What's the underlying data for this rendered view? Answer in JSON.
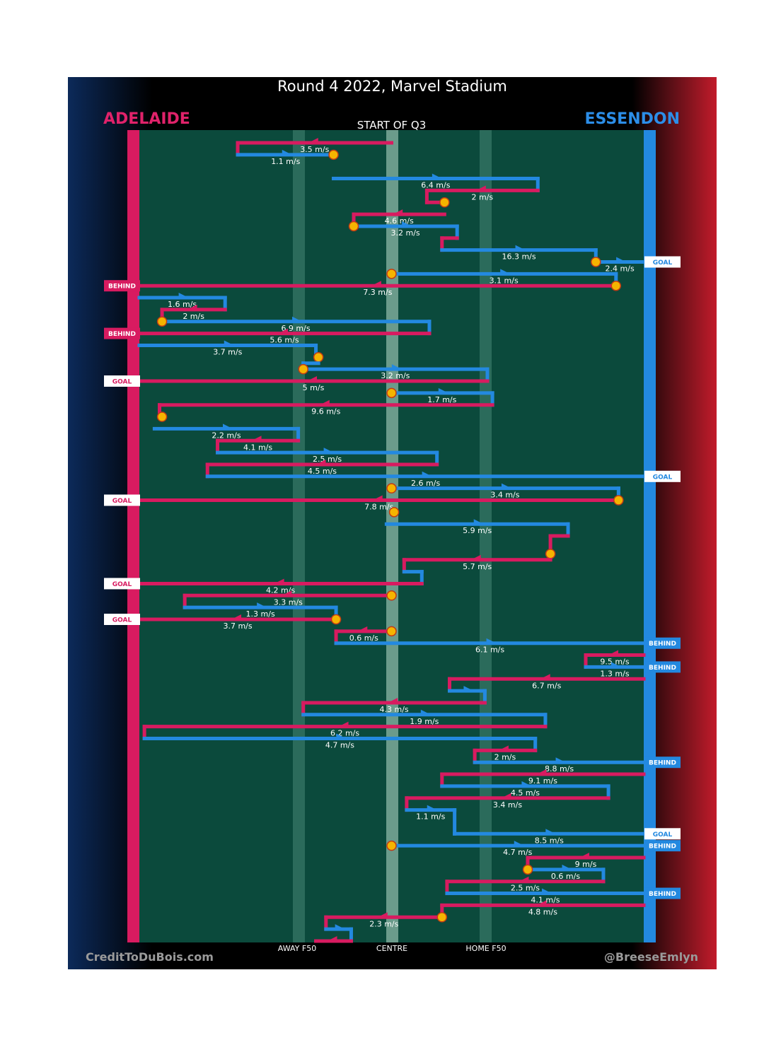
{
  "title": "Round 4 2022, Marvel Stadium",
  "teams": {
    "left": "ADELAIDE",
    "right": "ESSENDON",
    "left_color": "#d81b60",
    "right_color": "#2389e0"
  },
  "start_label": "START OF Q3",
  "axis_labels": {
    "away": "AWAY F50",
    "centre": "CENTRE",
    "home": "HOME F50"
  },
  "footer": {
    "credit": "CreditToDuBois.com",
    "handle": "@BreeseEmlyn"
  },
  "colors": {
    "field": "#0b4a3c",
    "stripe": "#2b6b5b",
    "centre_stripe": "#6b9b8b",
    "marker": "#f5b400",
    "marker_ring": "#c23b14"
  },
  "chart_data": {
    "type": "line",
    "description_units": "x = field position from Adelaide end (0) to Essendon end (100); y = event order",
    "x_axis": {
      "range": [
        0,
        100
      ],
      "ticks": [
        {
          "value": 31,
          "label": "AWAY F50"
        },
        {
          "value": 50,
          "label": "CENTRE"
        },
        {
          "value": 69,
          "label": "HOME F50"
        }
      ]
    },
    "series": [
      {
        "team": "ADE",
        "x1": 50,
        "x2": 19.5,
        "y": 1,
        "speed": "3.5 m/s",
        "conn_to": 2
      },
      {
        "team": "ESS",
        "x1": 19.5,
        "x2": 38.5,
        "y": 2,
        "speed": "1.1 m/s",
        "start_marker": false,
        "end_marker": true
      },
      {
        "team": "ESS",
        "x1": 38.5,
        "x2": 79,
        "y": 4,
        "speed": "6.4 m/s",
        "conn_to": 5
      },
      {
        "team": "ADE",
        "x1": 79,
        "x2": 57,
        "y": 5,
        "speed": "2 m/s",
        "conn_to": 6
      },
      {
        "team": "ADE",
        "x1": 57,
        "x2": 60.5,
        "y": 6,
        "speed": "",
        "end_marker": true
      },
      {
        "team": "ADE",
        "x1": 60.5,
        "x2": 42.5,
        "y": 7,
        "speed": "4.6 m/s",
        "conn_to": 8
      },
      {
        "team": "ESS",
        "x1": 42.5,
        "x2": 63,
        "y": 8,
        "speed": "3.2 m/s",
        "start_marker": true,
        "conn_to": 9
      },
      {
        "team": "ADE",
        "x1": 63,
        "x2": 60,
        "y": 9,
        "speed": "",
        "conn_to": 10
      },
      {
        "team": "ESS",
        "x1": 60,
        "x2": 90.5,
        "y": 10,
        "speed": "16.3 m/s",
        "conn_to": 11
      },
      {
        "team": "ESS",
        "x1": 90.5,
        "x2": 100,
        "y": 11,
        "speed": "2.4 m/s",
        "start_marker": true,
        "tag": "GOAL"
      },
      {
        "team": "ESS",
        "x1": 50,
        "x2": 94.5,
        "y": 12,
        "speed": "3.1 m/s",
        "start_marker": true,
        "conn_to": 13
      },
      {
        "team": "ADE",
        "x1": 94.5,
        "x2": 0,
        "y": 13,
        "speed": "7.3 m/s",
        "start_marker": true,
        "tag": "BEHIND"
      },
      {
        "team": "ESS",
        "x1": 0,
        "x2": 17,
        "y": 14,
        "speed": "1.6 m/s",
        "conn_to": 15
      },
      {
        "team": "ADE",
        "x1": 17,
        "x2": 4.5,
        "y": 15,
        "speed": "2 m/s",
        "conn_to": 16
      },
      {
        "team": "ESS",
        "x1": 4.5,
        "x2": 57.5,
        "y": 16,
        "speed": "6.9 m/s",
        "start_marker": true,
        "conn_to": 17
      },
      {
        "team": "ADE",
        "x1": 57.5,
        "x2": 0,
        "y": 17,
        "speed": "5.6 m/s",
        "tag": "BEHIND"
      },
      {
        "team": "ESS",
        "x1": 0,
        "x2": 35,
        "y": 18,
        "speed": "3.7 m/s",
        "conn_to": 19
      },
      {
        "team": "ADE",
        "x1": 35,
        "x2": 35.5,
        "y": 19,
        "speed": "",
        "end_marker": true
      },
      {
        "team": "ESS",
        "x1": 35.5,
        "x2": 32.5,
        "y": 19.5,
        "speed": "",
        "conn_to": 20
      },
      {
        "team": "ESS",
        "x1": 32.5,
        "x2": 69,
        "y": 20,
        "speed": "3.2 m/s",
        "start_marker": true,
        "conn_to": 21
      },
      {
        "team": "ADE",
        "x1": 69,
        "x2": 0,
        "y": 21,
        "speed": "5 m/s",
        "tag": "GOAL"
      },
      {
        "team": "ESS",
        "x1": 50,
        "x2": 70,
        "y": 22,
        "speed": "1.7 m/s",
        "start_marker": true,
        "conn_to": 23
      },
      {
        "team": "ADE",
        "x1": 70,
        "x2": 4,
        "y": 23,
        "speed": "9.6 m/s",
        "conn_to": 24
      },
      {
        "team": "ADE",
        "x1": 4,
        "x2": 4.5,
        "y": 24,
        "speed": "",
        "end_marker": true
      },
      {
        "team": "ESS",
        "x1": 3,
        "x2": 31.5,
        "y": 25,
        "speed": "2.2 m/s",
        "conn_to": 26
      },
      {
        "team": "ADE",
        "x1": 31.5,
        "x2": 15.5,
        "y": 26,
        "speed": "4.1 m/s",
        "conn_to": 27
      },
      {
        "team": "ESS",
        "x1": 15.5,
        "x2": 59,
        "y": 27,
        "speed": "2.5 m/s",
        "conn_to": 28
      },
      {
        "team": "ADE",
        "x1": 59,
        "x2": 13.5,
        "y": 28,
        "speed": "4.5 m/s",
        "conn_to": 29
      },
      {
        "team": "ESS",
        "x1": 13.5,
        "x2": 100,
        "y": 29,
        "speed": "2.6 m/s",
        "tag": "GOAL"
      },
      {
        "team": "ESS",
        "x1": 50,
        "x2": 95,
        "y": 30,
        "speed": "3.4 m/s",
        "start_marker": true,
        "conn_to": 31
      },
      {
        "team": "ADE",
        "x1": 95,
        "x2": 0,
        "y": 31,
        "speed": "7.8 m/s",
        "start_marker": true,
        "tag": "GOAL"
      },
      {
        "team": "ADE",
        "x1": 50,
        "x2": 50.5,
        "y": 32,
        "speed": "",
        "end_marker": true
      },
      {
        "team": "ESS",
        "x1": 49,
        "x2": 85,
        "y": 33,
        "speed": "5.9 m/s",
        "conn_to": 34
      },
      {
        "team": "ADE",
        "x1": 85,
        "x2": 81.5,
        "y": 34,
        "speed": "",
        "conn_to": 35
      },
      {
        "team": "ADE",
        "x1": 81.5,
        "x2": 81.5,
        "y": 35.5,
        "speed": "",
        "end_marker": true
      },
      {
        "team": "ADE",
        "x1": 81.5,
        "x2": 52.5,
        "y": 36,
        "speed": "5.7 m/s",
        "conn_to": 37
      },
      {
        "team": "ESS",
        "x1": 52.5,
        "x2": 56,
        "y": 37,
        "speed": "",
        "conn_to": 38
      },
      {
        "team": "ADE",
        "x1": 56,
        "x2": 0,
        "y": 38,
        "speed": "4.2 m/s",
        "tag": "GOAL"
      },
      {
        "team": "ADE",
        "x1": 50,
        "x2": 9,
        "y": 39,
        "speed": "3.3 m/s",
        "end_marker": false,
        "start_marker": true,
        "conn_to": 40
      },
      {
        "team": "ESS",
        "x1": 9,
        "x2": 39,
        "y": 40,
        "speed": "1.3 m/s",
        "conn_to": 41
      },
      {
        "team": "ADE",
        "x1": 39,
        "x2": 0,
        "y": 41,
        "speed": "3.7 m/s",
        "start_marker": true,
        "tag": "GOAL"
      },
      {
        "team": "ADE",
        "x1": 50,
        "x2": 39,
        "y": 42,
        "speed": "0.6 m/s",
        "start_marker": true,
        "conn_to": 43
      },
      {
        "team": "ESS",
        "x1": 39,
        "x2": 100,
        "y": 43,
        "speed": "6.1 m/s",
        "tag": "BEHIND"
      },
      {
        "team": "ADE",
        "x1": 100,
        "x2": 88.5,
        "y": 44,
        "speed": "9.5 m/s",
        "conn_to": 45
      },
      {
        "team": "ESS",
        "x1": 88.5,
        "x2": 100,
        "y": 45,
        "speed": "1.3 m/s",
        "tag": "BEHIND"
      },
      {
        "team": "ADE",
        "x1": 100,
        "x2": 61.5,
        "y": 46,
        "speed": "6.7 m/s",
        "conn_to": 47
      },
      {
        "team": "ESS",
        "x1": 61.5,
        "x2": 68.5,
        "y": 47,
        "speed": "",
        "conn_to": 48
      },
      {
        "team": "ADE",
        "x1": 68.5,
        "x2": 32.5,
        "y": 48,
        "speed": "4.3 m/s",
        "conn_to": 49
      },
      {
        "team": "ESS",
        "x1": 32.5,
        "x2": 80.5,
        "y": 49,
        "speed": "1.9 m/s",
        "conn_to": 50
      },
      {
        "team": "ADE",
        "x1": 80.5,
        "x2": 1,
        "y": 50,
        "speed": "6.2 m/s",
        "conn_to": 51
      },
      {
        "team": "ESS",
        "x1": 1,
        "x2": 78.5,
        "y": 51,
        "speed": "4.7 m/s",
        "conn_to": 52
      },
      {
        "team": "ADE",
        "x1": 78.5,
        "x2": 66.5,
        "y": 52,
        "speed": "2 m/s",
        "conn_to": 53
      },
      {
        "team": "ESS",
        "x1": 66.5,
        "x2": 100,
        "y": 53,
        "speed": "8.8 m/s",
        "tag": "BEHIND"
      },
      {
        "team": "ADE",
        "x1": 100,
        "x2": 60,
        "y": 54,
        "speed": "9.1 m/s",
        "conn_to": 55
      },
      {
        "team": "ESS",
        "x1": 60,
        "x2": 93,
        "y": 55,
        "speed": "4.5 m/s",
        "conn_to": 56
      },
      {
        "team": "ADE",
        "x1": 93,
        "x2": 53,
        "y": 56,
        "speed": "3.4 m/s",
        "conn_to": 57
      },
      {
        "team": "ESS",
        "x1": 53,
        "x2": 62.5,
        "y": 57,
        "speed": "1.1 m/s",
        "conn_to": 59
      },
      {
        "team": "ESS",
        "x1": 62.5,
        "x2": 100,
        "y": 59,
        "speed": "8.5 m/s",
        "tag": "GOAL"
      },
      {
        "team": "ESS",
        "x1": 50,
        "x2": 100,
        "y": 60,
        "speed": "4.7 m/s",
        "start_marker": true,
        "tag": "BEHIND"
      },
      {
        "team": "ADE",
        "x1": 100,
        "x2": 77,
        "y": 61,
        "speed": "9 m/s",
        "conn_to": 62
      },
      {
        "team": "ESS",
        "x1": 77,
        "x2": 92,
        "y": 62,
        "speed": "0.6 m/s",
        "start_marker": true,
        "conn_to": 63
      },
      {
        "team": "ADE",
        "x1": 92,
        "x2": 61,
        "y": 63,
        "speed": "2.5 m/s",
        "conn_to": 64
      },
      {
        "team": "ESS",
        "x1": 61,
        "x2": 100,
        "y": 64,
        "speed": "4.1 m/s",
        "tag": "BEHIND"
      },
      {
        "team": "ADE",
        "x1": 100,
        "x2": 60,
        "y": 65,
        "speed": "4.8 m/s",
        "conn_to": 66
      },
      {
        "team": "ADE",
        "x1": 60,
        "x2": 37,
        "y": 66,
        "speed": "2.3 m/s",
        "start_marker": true,
        "conn_to": 67
      },
      {
        "team": "ESS",
        "x1": 37,
        "x2": 42,
        "y": 67,
        "speed": "",
        "conn_to": 68
      },
      {
        "team": "ADE",
        "x1": 42,
        "x2": 35,
        "y": 68,
        "speed": ""
      }
    ]
  }
}
